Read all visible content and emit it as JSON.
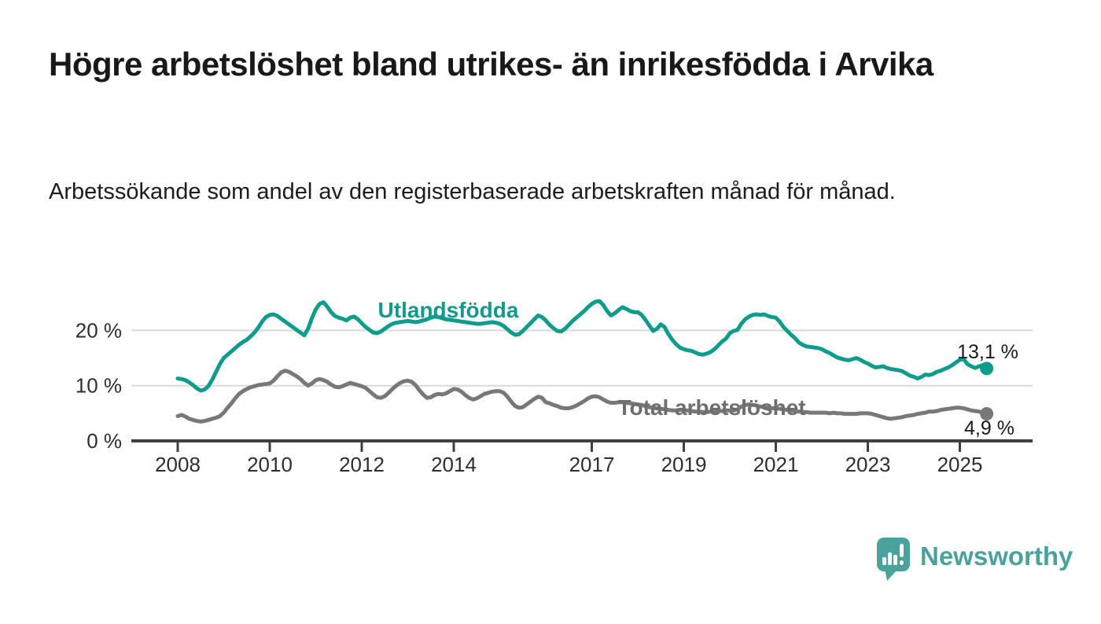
{
  "header": {
    "title": "Högre arbetslöshet bland utrikes- än inrikesfödda i Arvika",
    "subtitle": "Arbetssökande som andel av den registerbaserade arbetskraften månad för månad."
  },
  "branding": {
    "logo_text": "Newsworthy",
    "logo_color": "#4aa29d",
    "logo_icon": "bar-chart-speech-bubble-icon"
  },
  "chart_data": {
    "type": "line",
    "title": "Högre arbetslöshet bland utrikes- än inrikesfödda i Arvika",
    "subtitle": "Arbetssökande som andel av den registerbaserade arbetskraften månad för månad.",
    "x_unit": "month",
    "x_start": "2008-01",
    "x_end": "2025-08",
    "x_tick_labels": [
      "2008",
      "2010",
      "2012",
      "2014",
      "2017",
      "2019",
      "2021",
      "2023",
      "2025"
    ],
    "y_tick_values": [
      0,
      10,
      20
    ],
    "y_tick_labels": [
      "0 %",
      "10 %",
      "20 %"
    ],
    "ylim": [
      0,
      27
    ],
    "grid": "horizontal",
    "legend_position": "inline-labels",
    "colors": {
      "accent_teal": "#109c8c",
      "line_gray": "#787878",
      "axis": "#3f3f3f",
      "gridline": "#d9d9d9"
    },
    "series": [
      {
        "name": "Utlandsfödda",
        "color": "#109c8c",
        "end_label": "13,1 %",
        "last_value": 13.1,
        "values": [
          11.3,
          11.2,
          11.0,
          10.6,
          10.1,
          9.5,
          9.1,
          9.3,
          9.9,
          11.1,
          12.5,
          13.9,
          15.0,
          15.6,
          16.2,
          16.8,
          17.4,
          17.9,
          18.3,
          18.9,
          19.6,
          20.5,
          21.6,
          22.4,
          22.8,
          22.9,
          22.6,
          22.1,
          21.6,
          21.1,
          20.6,
          20.1,
          19.6,
          19.1,
          20.3,
          22.2,
          23.8,
          24.8,
          25.1,
          24.3,
          23.3,
          22.6,
          22.3,
          22.1,
          21.8,
          22.3,
          22.5,
          22.0,
          21.3,
          20.6,
          20.1,
          19.6,
          19.5,
          19.8,
          20.3,
          20.8,
          21.2,
          21.4,
          21.5,
          21.6,
          21.7,
          21.6,
          21.5,
          21.6,
          21.8,
          22.0,
          22.3,
          22.5,
          22.4,
          22.2,
          22.0,
          21.9,
          21.8,
          21.7,
          21.6,
          21.5,
          21.4,
          21.3,
          21.2,
          21.2,
          21.3,
          21.4,
          21.5,
          21.4,
          21.2,
          20.8,
          20.2,
          19.6,
          19.2,
          19.3,
          19.9,
          20.6,
          21.3,
          22.0,
          22.7,
          22.4,
          21.8,
          21.0,
          20.4,
          19.9,
          19.8,
          20.3,
          21.0,
          21.7,
          22.3,
          22.9,
          23.5,
          24.2,
          24.8,
          25.2,
          25.3,
          24.6,
          23.5,
          22.7,
          23.1,
          23.7,
          24.2,
          23.9,
          23.5,
          23.3,
          23.3,
          22.8,
          21.9,
          20.9,
          19.9,
          20.3,
          21.1,
          20.6,
          19.3,
          18.3,
          17.5,
          16.9,
          16.6,
          16.4,
          16.3,
          16.0,
          15.7,
          15.6,
          15.8,
          16.1,
          16.6,
          17.3,
          18.0,
          18.5,
          19.5,
          19.9,
          20.1,
          21.2,
          22.0,
          22.5,
          22.8,
          22.9,
          22.8,
          22.9,
          22.6,
          22.4,
          22.3,
          21.6,
          20.6,
          19.9,
          19.2,
          18.6,
          17.8,
          17.4,
          17.1,
          17.0,
          16.9,
          16.8,
          16.6,
          16.2,
          15.9,
          15.5,
          15.1,
          14.9,
          14.7,
          14.6,
          14.8,
          15.0,
          14.7,
          14.3,
          14.0,
          13.6,
          13.3,
          13.4,
          13.5,
          13.2,
          13.0,
          12.9,
          12.8,
          12.6,
          12.2,
          11.8,
          11.6,
          11.3,
          11.6,
          12.0,
          11.9,
          12.1,
          12.5,
          12.7,
          13.0,
          13.3,
          13.7,
          14.2,
          14.7,
          14.8,
          13.9,
          13.5,
          13.2,
          13.5,
          13.7,
          13.1
        ]
      },
      {
        "name": "Total arbetslöshet",
        "color": "#787878",
        "end_label": "4,9 %",
        "last_value": 4.9,
        "values": [
          4.5,
          4.7,
          4.4,
          4.0,
          3.8,
          3.6,
          3.5,
          3.6,
          3.8,
          4.0,
          4.2,
          4.5,
          5.1,
          6.0,
          6.8,
          7.7,
          8.5,
          9.0,
          9.4,
          9.7,
          9.9,
          10.1,
          10.2,
          10.3,
          10.4,
          10.9,
          11.7,
          12.4,
          12.7,
          12.5,
          12.1,
          11.7,
          11.2,
          10.5,
          10.0,
          10.4,
          11.0,
          11.2,
          11.0,
          10.7,
          10.2,
          9.8,
          9.7,
          9.9,
          10.2,
          10.5,
          10.3,
          10.1,
          9.9,
          9.6,
          9.0,
          8.4,
          7.9,
          7.8,
          8.1,
          8.7,
          9.4,
          10.0,
          10.5,
          10.8,
          10.9,
          10.7,
          10.1,
          9.2,
          8.4,
          7.8,
          7.9,
          8.3,
          8.5,
          8.4,
          8.6,
          9.0,
          9.4,
          9.3,
          8.9,
          8.3,
          7.8,
          7.5,
          7.7,
          8.1,
          8.5,
          8.7,
          8.9,
          9.0,
          9.0,
          8.7,
          8.0,
          7.1,
          6.3,
          6.0,
          6.1,
          6.6,
          7.1,
          7.6,
          8.0,
          7.8,
          7.0,
          6.8,
          6.5,
          6.3,
          6.0,
          5.9,
          5.9,
          6.1,
          6.4,
          6.8,
          7.2,
          7.7,
          8.0,
          8.1,
          7.9,
          7.5,
          7.1,
          6.9,
          6.9,
          7.0,
          7.0,
          6.9,
          6.8,
          6.7,
          6.6,
          6.5,
          6.3,
          6.1,
          6.0,
          5.9,
          5.8,
          5.7,
          5.6,
          5.5,
          5.5,
          5.6,
          5.6,
          5.5,
          5.4,
          5.3,
          5.3,
          5.2,
          5.2,
          5.3,
          5.3,
          5.4,
          5.4,
          5.5,
          5.5,
          5.5,
          5.7,
          6.2,
          6.5,
          6.6,
          6.5,
          6.4,
          6.2,
          6.1,
          6.0,
          5.9,
          5.9,
          5.8,
          5.7,
          5.6,
          5.5,
          5.4,
          5.3,
          5.2,
          5.2,
          5.1,
          5.1,
          5.1,
          5.1,
          5.1,
          5.0,
          5.1,
          5.0,
          5.0,
          4.9,
          4.9,
          4.9,
          4.9,
          5.0,
          5.0,
          5.0,
          4.9,
          4.7,
          4.5,
          4.3,
          4.1,
          4.0,
          4.1,
          4.2,
          4.3,
          4.5,
          4.6,
          4.7,
          4.9,
          5.0,
          5.1,
          5.3,
          5.3,
          5.4,
          5.6,
          5.7,
          5.8,
          5.9,
          6.0,
          6.0,
          5.9,
          5.7,
          5.5,
          5.4,
          5.3,
          5.1,
          4.9
        ]
      }
    ]
  }
}
